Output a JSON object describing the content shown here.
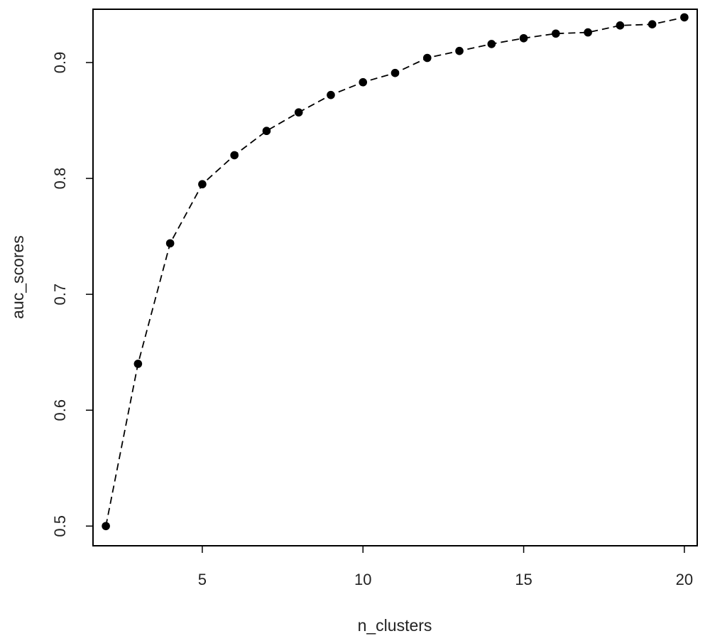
{
  "chart_data": {
    "type": "line",
    "title": "",
    "xlabel": "n_clusters",
    "ylabel": "auc_scores",
    "xlim": [
      1.6,
      20.4
    ],
    "ylim": [
      0.483,
      0.946
    ],
    "x_ticks": [
      5,
      10,
      15,
      20
    ],
    "y_ticks": [
      0.5,
      0.6,
      0.7,
      0.8,
      0.9
    ],
    "x_tick_labels": [
      "5",
      "10",
      "15",
      "20"
    ],
    "y_tick_labels": [
      "0.5",
      "0.6",
      "0.7",
      "0.8",
      "0.9"
    ],
    "grid": false,
    "line_style": "dashed",
    "marker": "filled-circle",
    "series": [
      {
        "x": [
          2,
          3,
          4,
          5,
          6,
          7,
          8,
          9,
          10,
          11,
          12,
          13,
          14,
          15,
          16,
          17,
          18,
          19,
          20
        ],
        "y": [
          0.5,
          0.64,
          0.744,
          0.795,
          0.82,
          0.841,
          0.857,
          0.872,
          0.883,
          0.891,
          0.904,
          0.91,
          0.916,
          0.921,
          0.925,
          0.926,
          0.932,
          0.933,
          0.939
        ]
      }
    ],
    "colors": {
      "line": "#000000",
      "marker": "#000000",
      "axis": "#000000",
      "text": "#222222"
    }
  }
}
